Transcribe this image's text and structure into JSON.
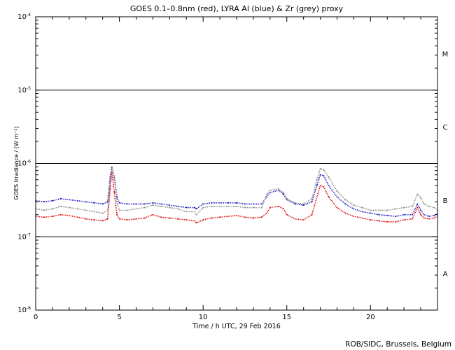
{
  "chart_data": {
    "type": "line",
    "title": "GOES 0.1–0.8nm (red), LYRA Al (blue) & Zr (grey) proxy",
    "xlabel": "Time / h UTC, 29 Feb 2016",
    "ylabel": "GOES Irradiance / (W m⁻²)",
    "credit": "ROB/SIDC, Brussels, Belgium",
    "xlim": [
      0,
      24
    ],
    "ylim": [
      1e-08,
      0.0001
    ],
    "yscale": "log",
    "x_ticks": [
      0,
      5,
      10,
      15,
      20
    ],
    "y_ticks": [
      {
        "value": 0.0001,
        "base": "10",
        "exp": "-4"
      },
      {
        "value": 1e-05,
        "base": "10",
        "exp": "-5"
      },
      {
        "value": 1e-06,
        "base": "10",
        "exp": "-6"
      },
      {
        "value": 1e-07,
        "base": "10",
        "exp": "-7"
      },
      {
        "value": 1e-08,
        "base": "10",
        "exp": "-8"
      }
    ],
    "class_lines": [
      1e-05,
      1e-06,
      1e-07
    ],
    "class_labels": [
      {
        "label": "M",
        "value": 3.16e-05
      },
      {
        "label": "C",
        "value": 3.16e-06
      },
      {
        "label": "B",
        "value": 3.16e-07
      },
      {
        "label": "A",
        "value": 3.16e-08
      }
    ],
    "series": [
      {
        "color": "#e00000",
        "x": [
          0,
          0.5,
          1,
          1.5,
          2,
          2.5,
          3,
          3.5,
          4,
          4.3,
          4.45,
          4.55,
          4.7,
          4.85,
          5,
          5.5,
          6,
          6.5,
          7,
          7.5,
          8,
          8.5,
          9,
          9.5,
          9.6,
          10,
          10.5,
          11,
          11.5,
          12,
          12.5,
          13,
          13.5,
          13.8,
          14,
          14.5,
          14.8,
          15,
          15.5,
          16,
          16.5,
          16.8,
          17,
          17.2,
          17.5,
          18,
          18.5,
          19,
          19.5,
          20,
          20.5,
          21,
          21.5,
          22,
          22.5,
          22.8,
          23,
          23.2,
          23.5,
          23.8,
          24
        ],
        "y": [
          1.9e-07,
          1.85e-07,
          1.9e-07,
          2e-07,
          1.95e-07,
          1.85e-07,
          1.75e-07,
          1.7e-07,
          1.65e-07,
          1.75e-07,
          4.5e-07,
          7.5e-07,
          4e-07,
          2e-07,
          1.75e-07,
          1.7e-07,
          1.75e-07,
          1.8e-07,
          2e-07,
          1.85e-07,
          1.8e-07,
          1.75e-07,
          1.7e-07,
          1.65e-07,
          1.55e-07,
          1.7e-07,
          1.8e-07,
          1.85e-07,
          1.9e-07,
          1.95e-07,
          1.85e-07,
          1.8e-07,
          1.85e-07,
          2.1e-07,
          2.5e-07,
          2.6e-07,
          2.4e-07,
          2e-07,
          1.75e-07,
          1.7e-07,
          2e-07,
          3.5e-07,
          5e-07,
          4.8e-07,
          3.5e-07,
          2.5e-07,
          2.1e-07,
          1.9e-07,
          1.8e-07,
          1.7e-07,
          1.65e-07,
          1.6e-07,
          1.6e-07,
          1.7e-07,
          1.75e-07,
          2.5e-07,
          2e-07,
          1.8e-07,
          1.75e-07,
          1.8e-07,
          1.9e-07
        ]
      },
      {
        "color": "#1010c0",
        "x": [
          0,
          0.5,
          1,
          1.5,
          2,
          2.5,
          3,
          3.5,
          4,
          4.3,
          4.45,
          4.55,
          4.7,
          4.85,
          5,
          5.5,
          6,
          6.5,
          7,
          7.5,
          8,
          8.5,
          9,
          9.5,
          9.6,
          10,
          10.5,
          11,
          11.5,
          12,
          12.5,
          13,
          13.5,
          13.8,
          14,
          14.5,
          14.8,
          15,
          15.5,
          16,
          16.5,
          16.8,
          17,
          17.2,
          17.5,
          18,
          18.5,
          19,
          19.5,
          20,
          20.5,
          21,
          21.5,
          22,
          22.5,
          22.8,
          23,
          23.2,
          23.5,
          23.8,
          24
        ],
        "y": [
          3.1e-07,
          3e-07,
          3.1e-07,
          3.3e-07,
          3.2e-07,
          3.1e-07,
          3e-07,
          2.9e-07,
          2.8e-07,
          3e-07,
          6.5e-07,
          8.8e-07,
          6.5e-07,
          3.5e-07,
          2.9e-07,
          2.8e-07,
          2.8e-07,
          2.8e-07,
          2.9e-07,
          2.8e-07,
          2.7e-07,
          2.6e-07,
          2.5e-07,
          2.5e-07,
          2.4e-07,
          2.8e-07,
          2.9e-07,
          2.9e-07,
          2.9e-07,
          2.9e-07,
          2.8e-07,
          2.8e-07,
          2.8e-07,
          3.5e-07,
          4e-07,
          4.3e-07,
          3.8e-07,
          3.2e-07,
          2.8e-07,
          2.7e-07,
          3e-07,
          5e-07,
          7e-07,
          6.8e-07,
          5e-07,
          3.5e-07,
          2.8e-07,
          2.4e-07,
          2.2e-07,
          2.1e-07,
          2e-07,
          1.95e-07,
          1.9e-07,
          2e-07,
          2e-07,
          2.8e-07,
          2.3e-07,
          2e-07,
          1.9e-07,
          1.95e-07,
          2.1e-07
        ]
      },
      {
        "color": "#888888",
        "x": [
          0,
          0.5,
          1,
          1.5,
          2,
          2.5,
          3,
          3.5,
          4,
          4.3,
          4.45,
          4.55,
          4.7,
          4.85,
          5,
          5.5,
          6,
          6.5,
          7,
          7.5,
          8,
          8.5,
          9,
          9.5,
          9.6,
          10,
          10.5,
          11,
          11.5,
          12,
          12.5,
          13,
          13.5,
          13.8,
          14,
          14.5,
          14.8,
          15,
          15.5,
          16,
          16.5,
          16.8,
          17,
          17.2,
          17.5,
          18,
          18.5,
          19,
          19.5,
          20,
          20.5,
          21,
          21.5,
          22,
          22.5,
          22.8,
          23,
          23.2,
          23.5,
          23.8,
          24
        ],
        "y": [
          2.4e-07,
          2.3e-07,
          2.4e-07,
          2.6e-07,
          2.5e-07,
          2.4e-07,
          2.3e-07,
          2.2e-07,
          2.1e-07,
          2.3e-07,
          6e-07,
          9e-07,
          6e-07,
          3e-07,
          2.3e-07,
          2.3e-07,
          2.4e-07,
          2.5e-07,
          2.7e-07,
          2.6e-07,
          2.5e-07,
          2.4e-07,
          2.2e-07,
          2.2e-07,
          2e-07,
          2.5e-07,
          2.6e-07,
          2.6e-07,
          2.6e-07,
          2.6e-07,
          2.5e-07,
          2.5e-07,
          2.5e-07,
          3.8e-07,
          4.3e-07,
          4.5e-07,
          4e-07,
          3.3e-07,
          2.9e-07,
          2.8e-07,
          3.3e-07,
          6e-07,
          8.5e-07,
          8.2e-07,
          6.5e-07,
          4.2e-07,
          3.2e-07,
          2.7e-07,
          2.5e-07,
          2.3e-07,
          2.3e-07,
          2.3e-07,
          2.4e-07,
          2.5e-07,
          2.6e-07,
          3.8e-07,
          3.4e-07,
          2.8e-07,
          2.6e-07,
          2.5e-07,
          2.3e-07
        ]
      }
    ]
  }
}
